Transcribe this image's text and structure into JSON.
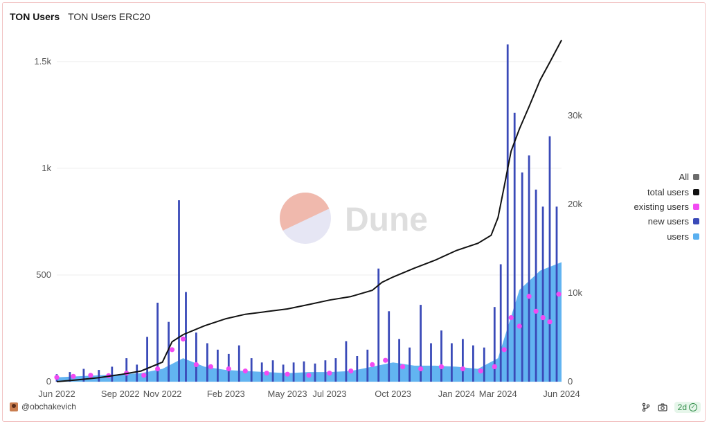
{
  "tabs": [
    {
      "label": "TON Users",
      "active": true
    },
    {
      "label": "TON Users ERC20",
      "active": false
    }
  ],
  "watermark": "Dune",
  "author": "@obchakevich",
  "refresh_badge": "2d",
  "footer_icons": [
    "fork-icon",
    "camera-icon",
    "check-circle-icon"
  ],
  "colors": {
    "users": "#5ab0f0",
    "new_users": "#3a4ab8",
    "existing_users": "#f24af2",
    "total_users": "#111111",
    "all": "#6b6b6b",
    "grid": "#eeeeee"
  },
  "legend": [
    {
      "label": "All",
      "color": "#6b6b6b"
    },
    {
      "label": "total users",
      "color": "#111111"
    },
    {
      "label": "existing users",
      "color": "#f24af2"
    },
    {
      "label": "new users",
      "color": "#3a4ab8"
    },
    {
      "label": "users",
      "color": "#5ab0f0"
    }
  ],
  "chart_data": {
    "type": "bar",
    "x_type": "date",
    "x_range": [
      "2022-06-01",
      "2024-06-01"
    ],
    "x_ticks": [
      "Jun 2022",
      "Sep 2022",
      "Nov 2022",
      "Feb 2023",
      "May 2023",
      "Jul 2023",
      "Oct 2023",
      "Jan 2024",
      "Mar 2024",
      "Jun 2024"
    ],
    "x_tick_dates": [
      "2022-06-01",
      "2022-09-01",
      "2022-11-01",
      "2023-02-01",
      "2023-05-01",
      "2023-07-01",
      "2023-10-01",
      "2024-01-01",
      "2024-03-01",
      "2024-06-01"
    ],
    "y_left": {
      "ticks": [
        "0",
        "500",
        "1k",
        "1.5k"
      ],
      "tick_values": [
        0,
        500,
        1000,
        1500
      ],
      "ylim": [
        0,
        1600
      ]
    },
    "y_right": {
      "ticks": [
        "0",
        "10k",
        "20k",
        "30k"
      ],
      "tick_values": [
        0,
        10000,
        20000,
        30000
      ],
      "ylim": [
        0,
        38500
      ]
    },
    "grid": true,
    "legend_position": "right",
    "series": [
      {
        "name": "new users",
        "kind": "bar",
        "axis": "left",
        "points": [
          [
            "2022-06-01",
            35
          ],
          [
            "2022-06-20",
            45
          ],
          [
            "2022-07-10",
            60
          ],
          [
            "2022-08-01",
            55
          ],
          [
            "2022-08-20",
            70
          ],
          [
            "2022-09-10",
            110
          ],
          [
            "2022-09-25",
            80
          ],
          [
            "2022-10-10",
            210
          ],
          [
            "2022-10-25",
            370
          ],
          [
            "2022-11-10",
            280
          ],
          [
            "2022-11-25",
            850
          ],
          [
            "2022-12-05",
            420
          ],
          [
            "2022-12-20",
            230
          ],
          [
            "2023-01-05",
            180
          ],
          [
            "2023-01-20",
            150
          ],
          [
            "2023-02-05",
            130
          ],
          [
            "2023-02-20",
            170
          ],
          [
            "2023-03-10",
            110
          ],
          [
            "2023-03-25",
            90
          ],
          [
            "2023-04-10",
            100
          ],
          [
            "2023-04-25",
            80
          ],
          [
            "2023-05-10",
            90
          ],
          [
            "2023-05-25",
            95
          ],
          [
            "2023-06-10",
            85
          ],
          [
            "2023-06-25",
            100
          ],
          [
            "2023-07-10",
            110
          ],
          [
            "2023-07-25",
            190
          ],
          [
            "2023-08-10",
            120
          ],
          [
            "2023-08-25",
            150
          ],
          [
            "2023-09-10",
            530
          ],
          [
            "2023-09-25",
            330
          ],
          [
            "2023-10-10",
            200
          ],
          [
            "2023-10-25",
            160
          ],
          [
            "2023-11-10",
            360
          ],
          [
            "2023-11-25",
            180
          ],
          [
            "2023-12-10",
            240
          ],
          [
            "2023-12-25",
            180
          ],
          [
            "2024-01-10",
            200
          ],
          [
            "2024-01-25",
            170
          ],
          [
            "2024-02-10",
            160
          ],
          [
            "2024-02-25",
            350
          ],
          [
            "2024-03-05",
            550
          ],
          [
            "2024-03-15",
            1580
          ],
          [
            "2024-03-25",
            1260
          ],
          [
            "2024-04-05",
            980
          ],
          [
            "2024-04-15",
            1060
          ],
          [
            "2024-04-25",
            900
          ],
          [
            "2024-05-05",
            820
          ],
          [
            "2024-05-15",
            1150
          ],
          [
            "2024-05-25",
            820
          ]
        ]
      },
      {
        "name": "users",
        "kind": "area",
        "axis": "left",
        "points": [
          [
            "2022-06-01",
            20
          ],
          [
            "2022-07-01",
            25
          ],
          [
            "2022-08-01",
            30
          ],
          [
            "2022-09-01",
            35
          ],
          [
            "2022-10-01",
            40
          ],
          [
            "2022-11-01",
            60
          ],
          [
            "2022-12-01",
            110
          ],
          [
            "2023-01-01",
            70
          ],
          [
            "2023-02-01",
            55
          ],
          [
            "2023-03-01",
            50
          ],
          [
            "2023-04-01",
            45
          ],
          [
            "2023-05-01",
            40
          ],
          [
            "2023-06-01",
            45
          ],
          [
            "2023-07-01",
            45
          ],
          [
            "2023-08-01",
            50
          ],
          [
            "2023-09-01",
            70
          ],
          [
            "2023-10-01",
            90
          ],
          [
            "2023-11-01",
            75
          ],
          [
            "2023-12-01",
            75
          ],
          [
            "2024-01-01",
            70
          ],
          [
            "2024-02-01",
            60
          ],
          [
            "2024-03-01",
            110
          ],
          [
            "2024-04-01",
            430
          ],
          [
            "2024-05-01",
            520
          ],
          [
            "2024-06-01",
            560
          ]
        ]
      },
      {
        "name": "existing users",
        "kind": "scatter",
        "axis": "left",
        "points": [
          [
            "2022-06-01",
            20
          ],
          [
            "2022-06-25",
            25
          ],
          [
            "2022-07-20",
            30
          ],
          [
            "2022-08-15",
            28
          ],
          [
            "2022-09-10",
            40
          ],
          [
            "2022-10-05",
            30
          ],
          [
            "2022-10-25",
            60
          ],
          [
            "2022-11-15",
            150
          ],
          [
            "2022-12-01",
            200
          ],
          [
            "2022-12-20",
            80
          ],
          [
            "2023-01-10",
            70
          ],
          [
            "2023-02-05",
            60
          ],
          [
            "2023-03-01",
            50
          ],
          [
            "2023-04-01",
            40
          ],
          [
            "2023-05-01",
            35
          ],
          [
            "2023-06-01",
            30
          ],
          [
            "2023-07-01",
            40
          ],
          [
            "2023-08-01",
            50
          ],
          [
            "2023-09-01",
            80
          ],
          [
            "2023-09-20",
            100
          ],
          [
            "2023-10-15",
            70
          ],
          [
            "2023-11-10",
            60
          ],
          [
            "2023-12-10",
            70
          ],
          [
            "2024-01-10",
            60
          ],
          [
            "2024-02-05",
            50
          ],
          [
            "2024-02-25",
            70
          ],
          [
            "2024-03-10",
            150
          ],
          [
            "2024-03-20",
            300
          ],
          [
            "2024-04-01",
            260
          ],
          [
            "2024-04-15",
            400
          ],
          [
            "2024-04-25",
            330
          ],
          [
            "2024-05-05",
            300
          ],
          [
            "2024-05-15",
            280
          ],
          [
            "2024-05-28",
            410
          ]
        ]
      },
      {
        "name": "total users",
        "kind": "line",
        "axis": "right",
        "points": [
          [
            "2022-06-01",
            0
          ],
          [
            "2022-07-01",
            200
          ],
          [
            "2022-08-01",
            450
          ],
          [
            "2022-09-01",
            800
          ],
          [
            "2022-10-01",
            1200
          ],
          [
            "2022-11-01",
            2200
          ],
          [
            "2022-11-15",
            4500
          ],
          [
            "2022-12-01",
            5300
          ],
          [
            "2023-01-01",
            6300
          ],
          [
            "2023-02-01",
            7100
          ],
          [
            "2023-03-01",
            7600
          ],
          [
            "2023-04-01",
            7900
          ],
          [
            "2023-05-01",
            8200
          ],
          [
            "2023-06-01",
            8700
          ],
          [
            "2023-07-01",
            9200
          ],
          [
            "2023-08-01",
            9600
          ],
          [
            "2023-09-01",
            10300
          ],
          [
            "2023-09-15",
            11200
          ],
          [
            "2023-10-01",
            11800
          ],
          [
            "2023-11-01",
            12800
          ],
          [
            "2023-12-01",
            13700
          ],
          [
            "2024-01-01",
            14800
          ],
          [
            "2024-02-01",
            15600
          ],
          [
            "2024-02-20",
            16500
          ],
          [
            "2024-03-01",
            18500
          ],
          [
            "2024-03-10",
            22000
          ],
          [
            "2024-03-20",
            26000
          ],
          [
            "2024-04-01",
            28500
          ],
          [
            "2024-04-15",
            31000
          ],
          [
            "2024-05-01",
            34000
          ],
          [
            "2024-05-15",
            36000
          ],
          [
            "2024-06-01",
            38500
          ]
        ]
      }
    ]
  }
}
